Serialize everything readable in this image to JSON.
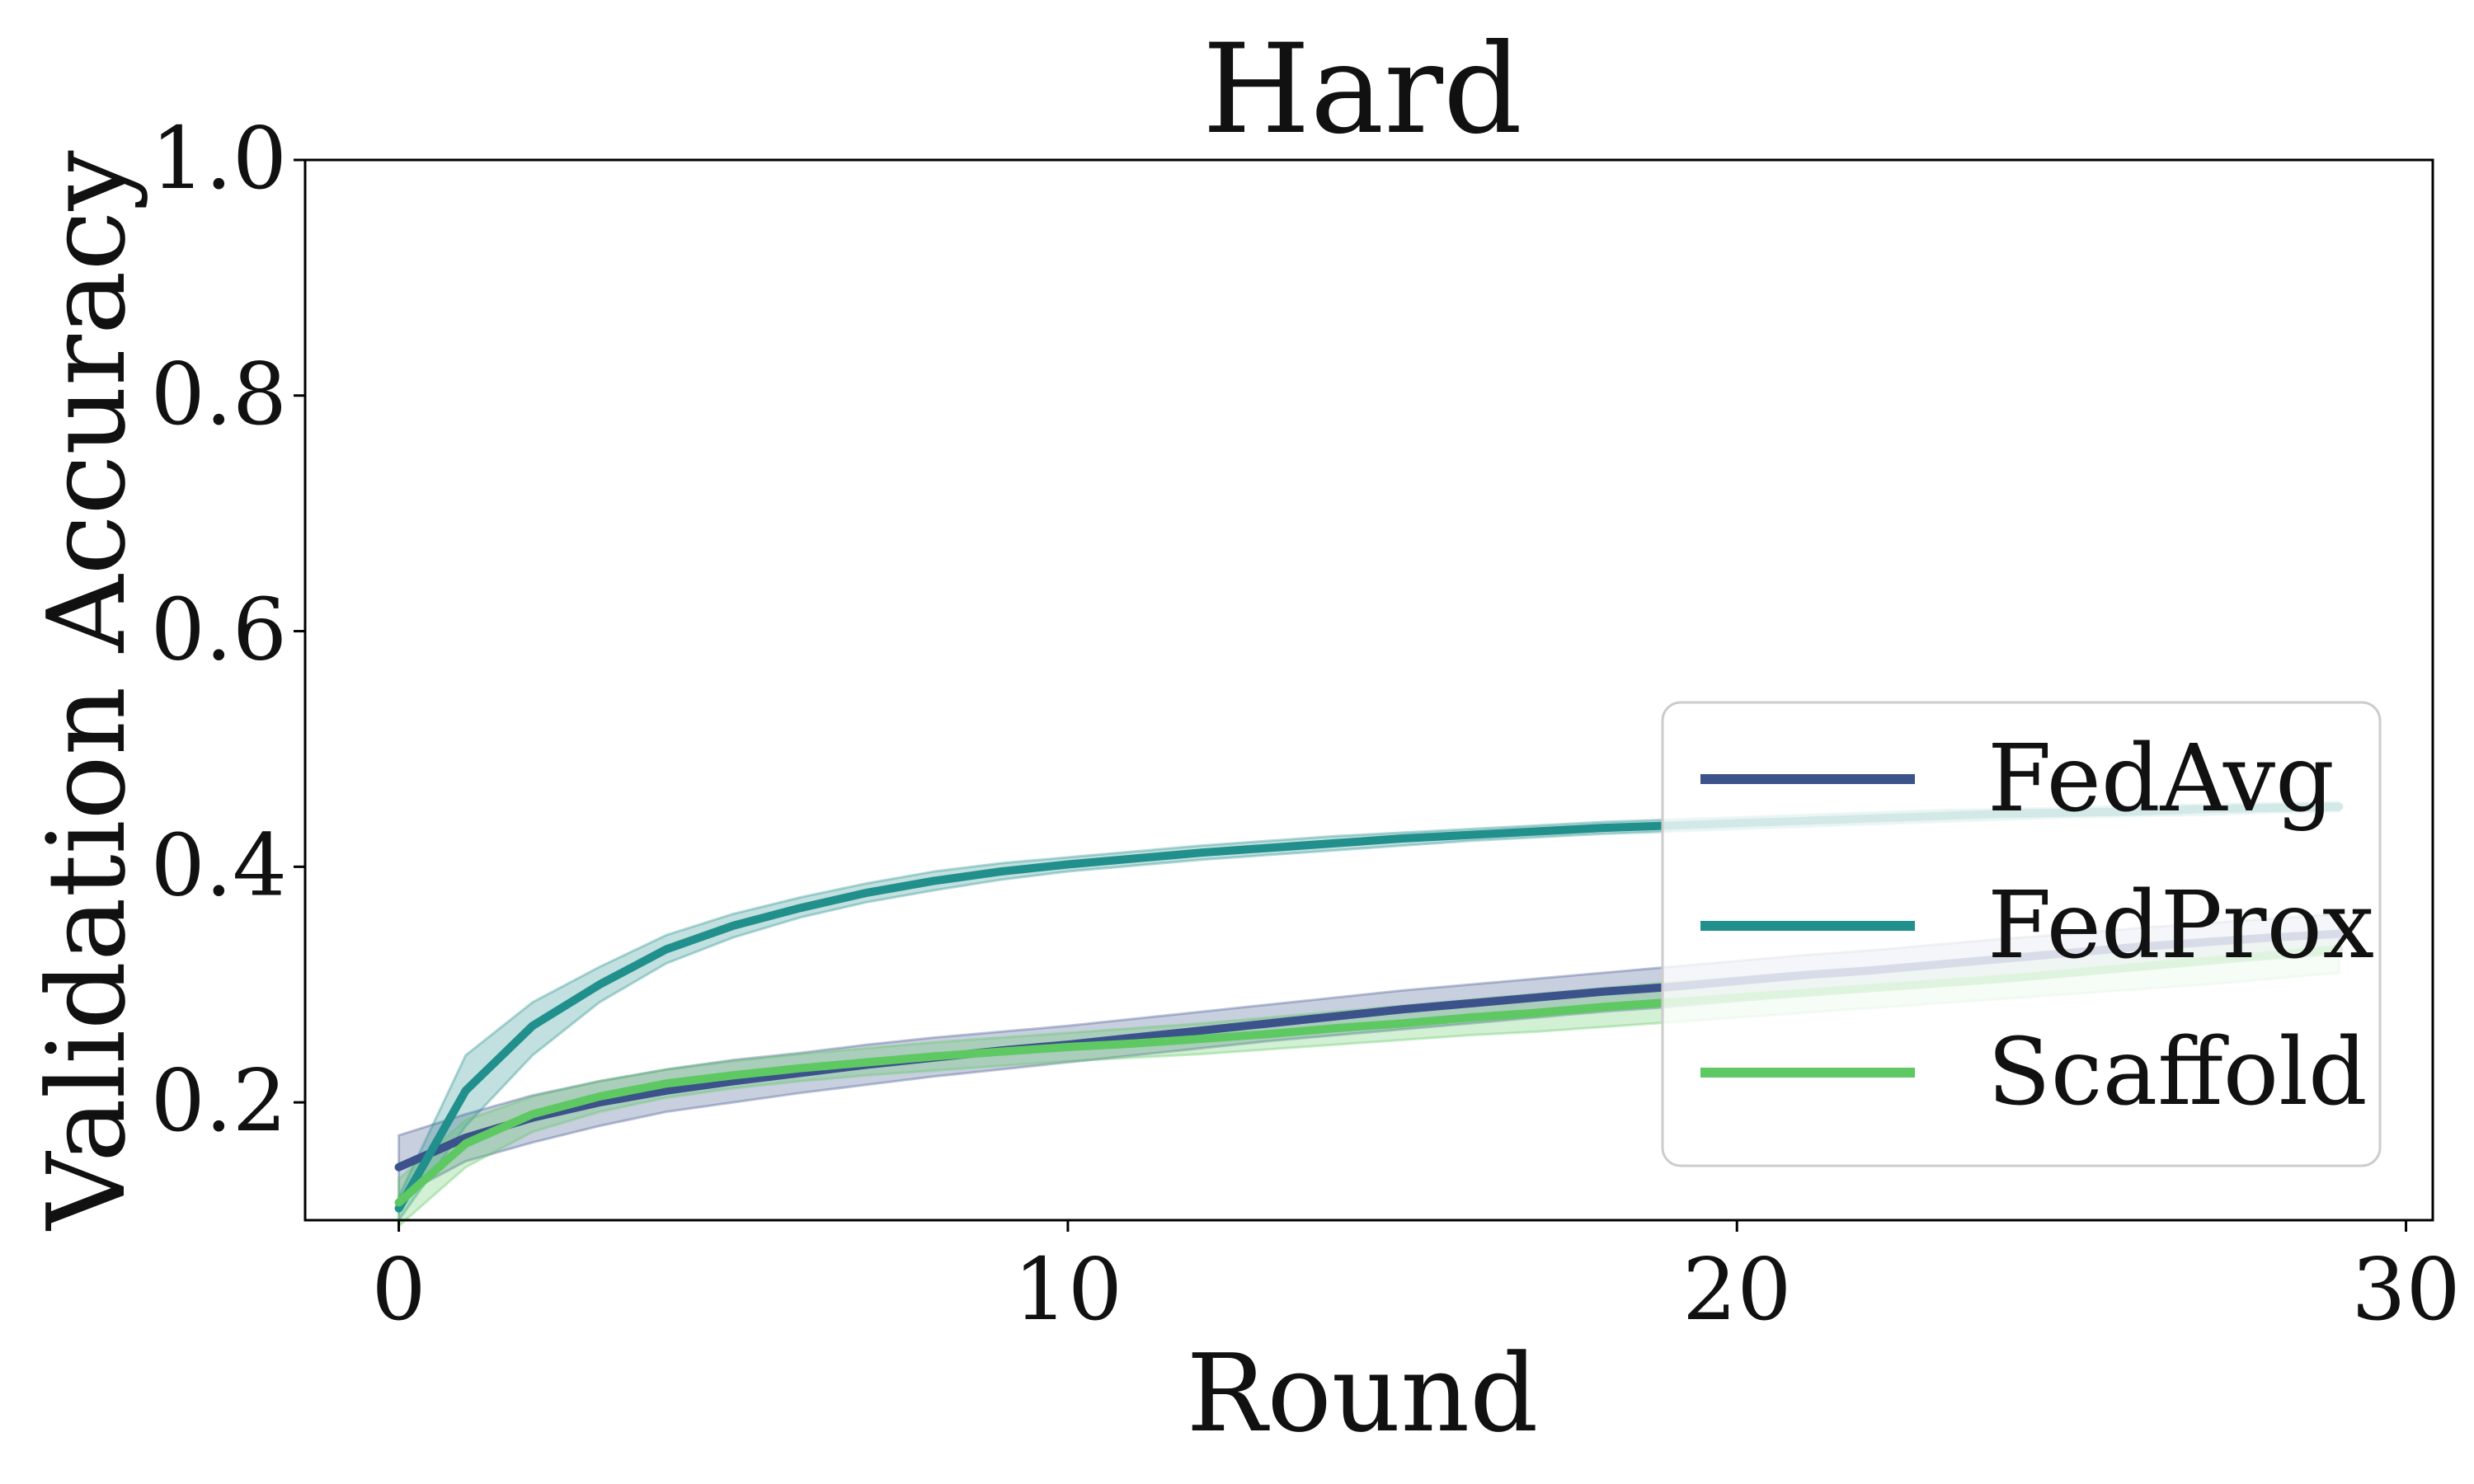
{
  "chart_data": {
    "type": "line",
    "title": "Hard",
    "xlabel": "Round",
    "ylabel": "Validation Accuracy",
    "xlim": [
      -1.4,
      30.4
    ],
    "ylim": [
      0.1,
      1.0
    ],
    "xticks": [
      0,
      10,
      20,
      30
    ],
    "xtick_labels": [
      "0",
      "10",
      "20",
      "30"
    ],
    "yticks": [
      0.2,
      0.4,
      0.6,
      0.8,
      1.0
    ],
    "ytick_labels": [
      "0.2",
      "0.4",
      "0.6",
      "0.8",
      "1.0"
    ],
    "grid": false,
    "legend_position": "bottom-right",
    "x": [
      0,
      1,
      2,
      3,
      4,
      5,
      6,
      7,
      8,
      9,
      10,
      11,
      12,
      13,
      14,
      15,
      16,
      17,
      18,
      19,
      20,
      21,
      22,
      23,
      24,
      25,
      26,
      27,
      28,
      29
    ],
    "series": [
      {
        "name": "FedAvg",
        "color": "#3b528b",
        "values": [
          0.145,
          0.17,
          0.187,
          0.2,
          0.21,
          0.218,
          0.225,
          0.232,
          0.238,
          0.244,
          0.249,
          0.255,
          0.261,
          0.267,
          0.273,
          0.279,
          0.284,
          0.289,
          0.294,
          0.298,
          0.303,
          0.308,
          0.312,
          0.317,
          0.322,
          0.327,
          0.332,
          0.336,
          0.34,
          0.343
        ],
        "lower": [
          0.12,
          0.15,
          0.166,
          0.18,
          0.192,
          0.2,
          0.208,
          0.215,
          0.222,
          0.228,
          0.234,
          0.24,
          0.246,
          0.252,
          0.257,
          0.262,
          0.267,
          0.272,
          0.277,
          0.281,
          0.286,
          0.291,
          0.296,
          0.3,
          0.305,
          0.31,
          0.314,
          0.318,
          0.322,
          0.326
        ],
        "upper": [
          0.172,
          0.19,
          0.206,
          0.218,
          0.228,
          0.236,
          0.242,
          0.249,
          0.255,
          0.26,
          0.265,
          0.271,
          0.277,
          0.283,
          0.289,
          0.295,
          0.3,
          0.305,
          0.31,
          0.315,
          0.32,
          0.325,
          0.329,
          0.334,
          0.339,
          0.343,
          0.348,
          0.352,
          0.356,
          0.36
        ]
      },
      {
        "name": "FedProx",
        "color": "#21908d",
        "values": [
          0.11,
          0.21,
          0.265,
          0.3,
          0.33,
          0.35,
          0.365,
          0.378,
          0.388,
          0.396,
          0.402,
          0.407,
          0.412,
          0.416,
          0.42,
          0.424,
          0.427,
          0.43,
          0.433,
          0.435,
          0.437,
          0.439,
          0.441,
          0.443,
          0.445,
          0.446,
          0.447,
          0.449,
          0.45,
          0.451
        ],
        "lower": [
          0.1,
          0.18,
          0.24,
          0.285,
          0.318,
          0.34,
          0.357,
          0.37,
          0.38,
          0.389,
          0.396,
          0.401,
          0.406,
          0.41,
          0.414,
          0.418,
          0.422,
          0.425,
          0.428,
          0.43,
          0.432,
          0.434,
          0.436,
          0.438,
          0.44,
          0.442,
          0.443,
          0.444,
          0.446,
          0.447
        ],
        "upper": [
          0.12,
          0.24,
          0.285,
          0.315,
          0.342,
          0.36,
          0.374,
          0.386,
          0.396,
          0.403,
          0.408,
          0.413,
          0.418,
          0.422,
          0.426,
          0.429,
          0.432,
          0.435,
          0.438,
          0.44,
          0.442,
          0.444,
          0.446,
          0.448,
          0.449,
          0.45,
          0.452,
          0.453,
          0.454,
          0.455
        ]
      },
      {
        "name": "Scaffold",
        "color": "#5ec962",
        "values": [
          0.115,
          0.165,
          0.19,
          0.205,
          0.216,
          0.223,
          0.229,
          0.234,
          0.239,
          0.243,
          0.247,
          0.25,
          0.254,
          0.258,
          0.263,
          0.267,
          0.272,
          0.276,
          0.281,
          0.285,
          0.289,
          0.293,
          0.297,
          0.301,
          0.305,
          0.31,
          0.315,
          0.32,
          0.325,
          0.33
        ],
        "lower": [
          0.095,
          0.145,
          0.175,
          0.192,
          0.204,
          0.212,
          0.218,
          0.223,
          0.227,
          0.231,
          0.235,
          0.238,
          0.241,
          0.245,
          0.249,
          0.253,
          0.257,
          0.26,
          0.264,
          0.268,
          0.272,
          0.276,
          0.28,
          0.284,
          0.288,
          0.292,
          0.296,
          0.3,
          0.305,
          0.31
        ],
        "upper": [
          0.135,
          0.185,
          0.205,
          0.218,
          0.228,
          0.235,
          0.241,
          0.246,
          0.251,
          0.255,
          0.259,
          0.263,
          0.267,
          0.272,
          0.277,
          0.282,
          0.287,
          0.292,
          0.297,
          0.302,
          0.306,
          0.31,
          0.314,
          0.318,
          0.322,
          0.326,
          0.33,
          0.334,
          0.338,
          0.342
        ]
      }
    ]
  }
}
